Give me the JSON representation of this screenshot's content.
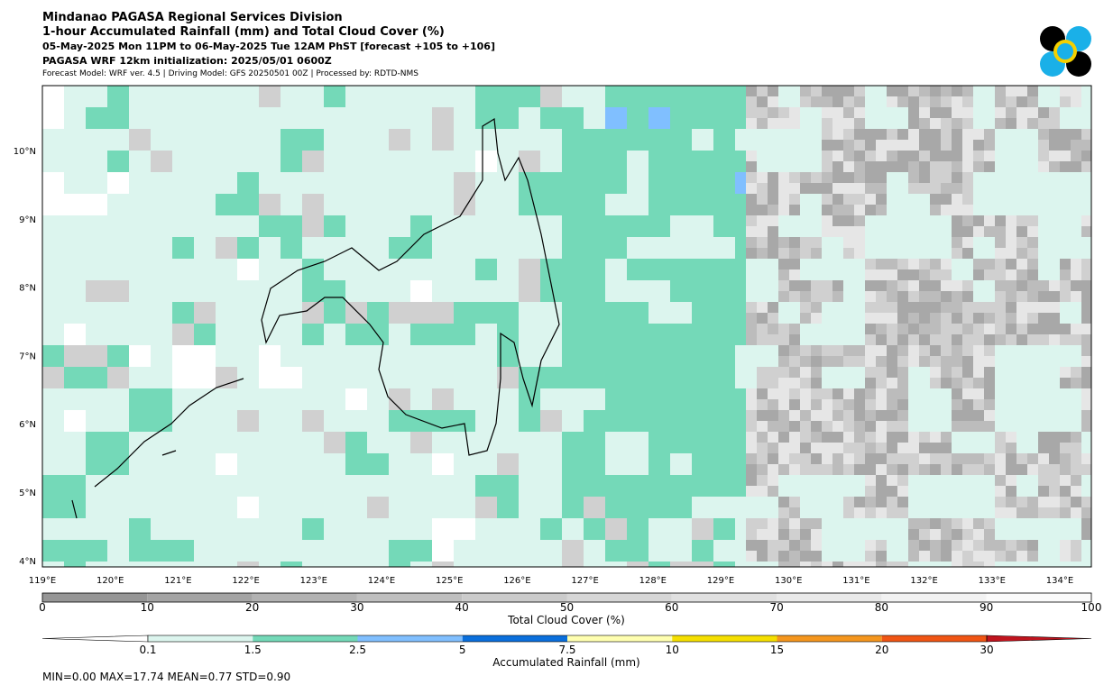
{
  "header": {
    "lines": [
      "Mindanao PAGASA Regional Services Division",
      "1-hour Accumulated Rainfall (mm) and Total Cloud Cover (%)",
      "05-May-2025 Mon 11PM to 06-May-2025 Tue 12AM PhST [forecast +105 to +106]",
      "PAGASA WRF 12km initialization: 2025/05/01 0600Z",
      "Forecast Model: WRF ver. 4.5 | Driving Model: GFS 20250501 00Z | Processed by: RDTD-NMS"
    ]
  },
  "map": {
    "lat_labels": [
      "10°N",
      "9°N",
      "8°N",
      "7°N",
      "6°N",
      "5°N",
      "4°N"
    ],
    "lon_labels": [
      "119°E",
      "120°E",
      "121°E",
      "122°E",
      "123°E",
      "124°E",
      "125°E",
      "126°E",
      "127°E",
      "128°E",
      "129°E",
      "130°E",
      "131°E",
      "132°E",
      "133°E",
      "134°E"
    ]
  },
  "cloud_colorbar": {
    "label": "Total Cloud Cover (%)",
    "ticks": [
      "0",
      "10",
      "20",
      "30",
      "40",
      "50",
      "60",
      "70",
      "80",
      "90",
      "100"
    ],
    "colors": [
      "#969696",
      "#a4a4a4",
      "#b2b2b2",
      "#bfbfbf",
      "#cbcbcb",
      "#d6d6d6",
      "#e0e0e0",
      "#e9e9e9",
      "#f2f2f2",
      "#fafafa"
    ]
  },
  "rain_colorbar": {
    "label": "Accumulated Rainfall (mm)",
    "ticks": [
      "0.1",
      "1.5",
      "2.5",
      "5",
      "7.5",
      "10",
      "15",
      "20",
      "30"
    ],
    "colors": [
      "#dcf5ee",
      "#74d9b8",
      "#80bfff",
      "#0a6fdc",
      "#ffffb0",
      "#f5df00",
      "#f5961e",
      "#f05514"
    ],
    "under_color": "#ffffff",
    "over_color": "#c0141e"
  },
  "stats": "MIN=0.00   MAX=17.74   MEAN=0.77   STD=0.90"
}
